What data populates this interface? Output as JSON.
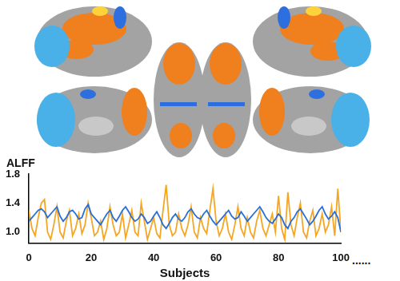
{
  "chart_data": {
    "type": "line",
    "y_label": "ALFF",
    "x_label": "Subjects",
    "annotation": "......",
    "x": [
      0,
      1,
      2,
      3,
      4,
      5,
      6,
      7,
      8,
      9,
      10,
      11,
      12,
      13,
      14,
      15,
      16,
      17,
      18,
      19,
      20,
      21,
      22,
      23,
      24,
      25,
      26,
      27,
      28,
      29,
      30,
      31,
      32,
      33,
      34,
      35,
      36,
      37,
      38,
      39,
      40,
      41,
      42,
      43,
      44,
      45,
      46,
      47,
      48,
      49,
      50,
      51,
      52,
      53,
      54,
      55,
      56,
      57,
      58,
      59,
      60,
      61,
      62,
      63,
      64,
      65,
      66,
      67,
      68,
      69,
      70,
      71,
      72,
      73,
      74,
      75,
      76,
      77,
      78,
      79,
      80,
      81,
      82,
      83,
      84,
      85,
      86,
      87,
      88,
      89,
      90,
      91,
      92,
      93,
      94,
      95,
      96,
      97,
      98,
      99,
      100
    ],
    "series": [
      {
        "color": "#2a6fd6",
        "values": [
          1.15,
          1.2,
          1.25,
          1.3,
          1.32,
          1.28,
          1.2,
          1.25,
          1.3,
          1.35,
          1.22,
          1.15,
          1.2,
          1.28,
          1.3,
          1.25,
          1.18,
          1.2,
          1.32,
          1.38,
          1.25,
          1.2,
          1.15,
          1.1,
          1.18,
          1.25,
          1.3,
          1.2,
          1.15,
          1.22,
          1.3,
          1.35,
          1.28,
          1.2,
          1.15,
          1.18,
          1.25,
          1.2,
          1.12,
          1.15,
          1.22,
          1.28,
          1.2,
          1.1,
          1.05,
          1.12,
          1.2,
          1.25,
          1.18,
          1.15,
          1.2,
          1.28,
          1.32,
          1.25,
          1.2,
          1.18,
          1.25,
          1.3,
          1.22,
          1.15,
          1.1,
          1.15,
          1.2,
          1.25,
          1.3,
          1.22,
          1.18,
          1.2,
          1.28,
          1.22,
          1.15,
          1.2,
          1.25,
          1.3,
          1.35,
          1.28,
          1.2,
          1.15,
          1.12,
          1.18,
          1.25,
          1.2,
          1.1,
          1.05,
          1.15,
          1.2,
          1.28,
          1.32,
          1.25,
          1.18,
          1.1,
          1.15,
          1.22,
          1.3,
          1.35,
          1.25,
          1.18,
          1.22,
          1.28,
          1.2,
          1.0
        ]
      },
      {
        "color": "#f5a623",
        "values": [
          1.3,
          1.05,
          0.95,
          1.2,
          1.4,
          1.45,
          1.0,
          0.9,
          1.1,
          1.35,
          1.0,
          0.92,
          1.15,
          1.3,
          0.95,
          1.05,
          1.25,
          0.98,
          1.1,
          1.4,
          1.2,
          0.95,
          1.0,
          1.15,
          0.9,
          1.05,
          1.35,
          1.1,
          0.95,
          1.0,
          1.25,
          0.92,
          1.1,
          1.3,
          1.0,
          0.95,
          1.4,
          1.15,
          0.9,
          1.05,
          1.2,
          0.98,
          0.92,
          1.3,
          1.65,
          1.1,
          0.95,
          1.0,
          1.25,
          1.05,
          0.95,
          1.1,
          1.35,
          1.0,
          0.92,
          1.2,
          1.05,
          0.98,
          1.3,
          1.6,
          1.15,
          0.95,
          1.05,
          1.25,
          1.0,
          0.9,
          1.1,
          1.35,
          1.05,
          0.95,
          1.2,
          1.0,
          0.92,
          1.15,
          1.3,
          1.05,
          0.95,
          1.1,
          1.25,
          1.0,
          1.5,
          1.05,
          0.9,
          1.55,
          1.1,
          0.95,
          1.2,
          1.4,
          1.0,
          0.92,
          1.15,
          1.3,
          0.95,
          1.05,
          1.25,
          1.0,
          1.1,
          1.35,
          0.95,
          1.6,
          1.0
        ]
      }
    ],
    "xlim": [
      0,
      100
    ],
    "xticks": [
      0,
      20,
      40,
      60,
      80,
      100
    ],
    "ylim": [
      0.85,
      1.8
    ],
    "yticks": [
      {
        "value": 1,
        "label": "1.0"
      },
      1.4,
      1.8
    ],
    "grid": false
  }
}
